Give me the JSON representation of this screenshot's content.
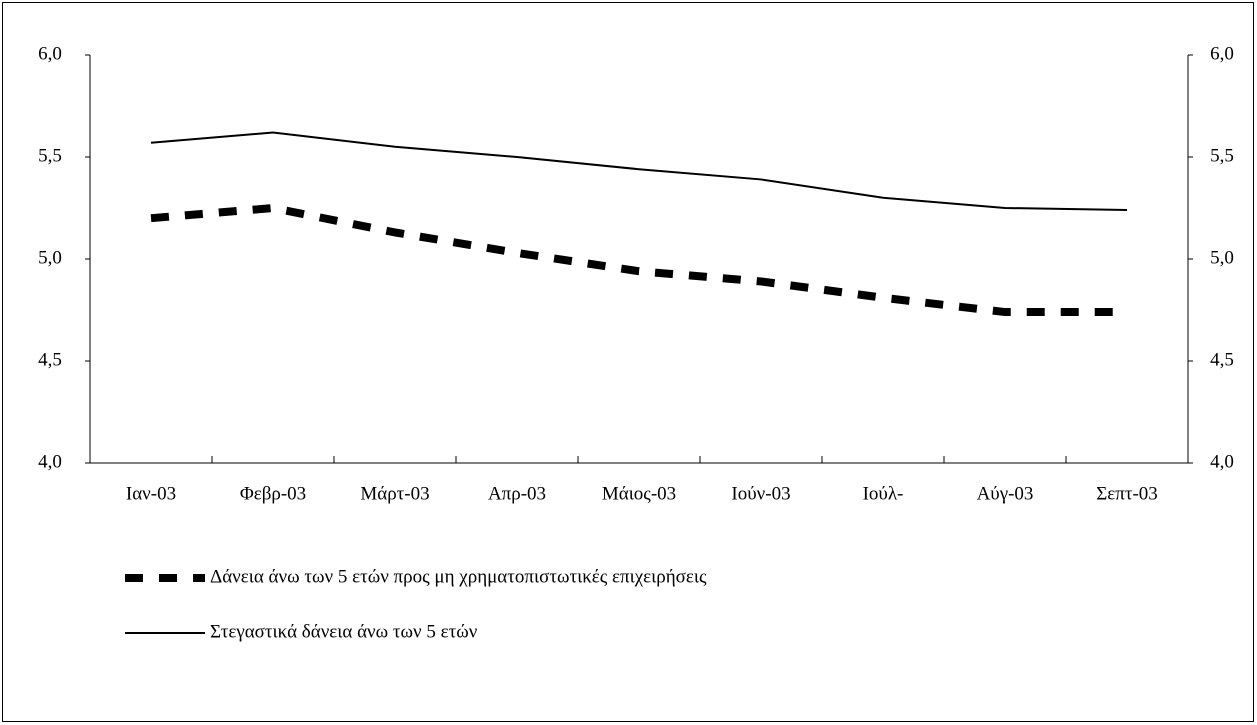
{
  "chart_data": {
    "type": "line",
    "categories": [
      "Ιαν-03",
      "Φεβρ-03",
      "Μάρτ-03",
      "Απρ-03",
      "Μάιος-03",
      "Ιούν-03",
      "Ιούλ-",
      "Αύγ-03",
      "Σεπτ-03"
    ],
    "series": [
      {
        "name": "Δάνεια άνω των 5 ετών προς μη χρηματοπιστωτικές επιχειρήσεις",
        "color": "#000000",
        "style": "dashed",
        "values": [
          5.2,
          5.25,
          5.13,
          5.03,
          4.94,
          4.89,
          4.81,
          4.74,
          4.74
        ]
      },
      {
        "name": "Στεγαστικά δάνεια άνω των 5 ετών",
        "color": "#000000",
        "style": "solid",
        "values": [
          5.57,
          5.62,
          5.55,
          5.5,
          5.44,
          5.39,
          5.3,
          5.25,
          5.24
        ]
      }
    ],
    "ylim": [
      4.0,
      6.0
    ],
    "yticks": [
      {
        "value": 4.0,
        "label": "4,0"
      },
      {
        "value": 4.5,
        "label": "4,5"
      },
      {
        "value": 5.0,
        "label": "5,0"
      },
      {
        "value": 5.5,
        "label": "5,5"
      },
      {
        "value": 6.0,
        "label": "6,0"
      }
    ],
    "y2lim": [
      4.0,
      6.0
    ],
    "y2ticks": [
      {
        "value": 4.0,
        "label": "4,0"
      },
      {
        "value": 4.5,
        "label": "4,5"
      },
      {
        "value": 5.0,
        "label": "5,0"
      },
      {
        "value": 5.5,
        "label": "5,5"
      },
      {
        "value": 6.0,
        "label": "6,0"
      }
    ],
    "grid": false,
    "legend": "bottom"
  }
}
